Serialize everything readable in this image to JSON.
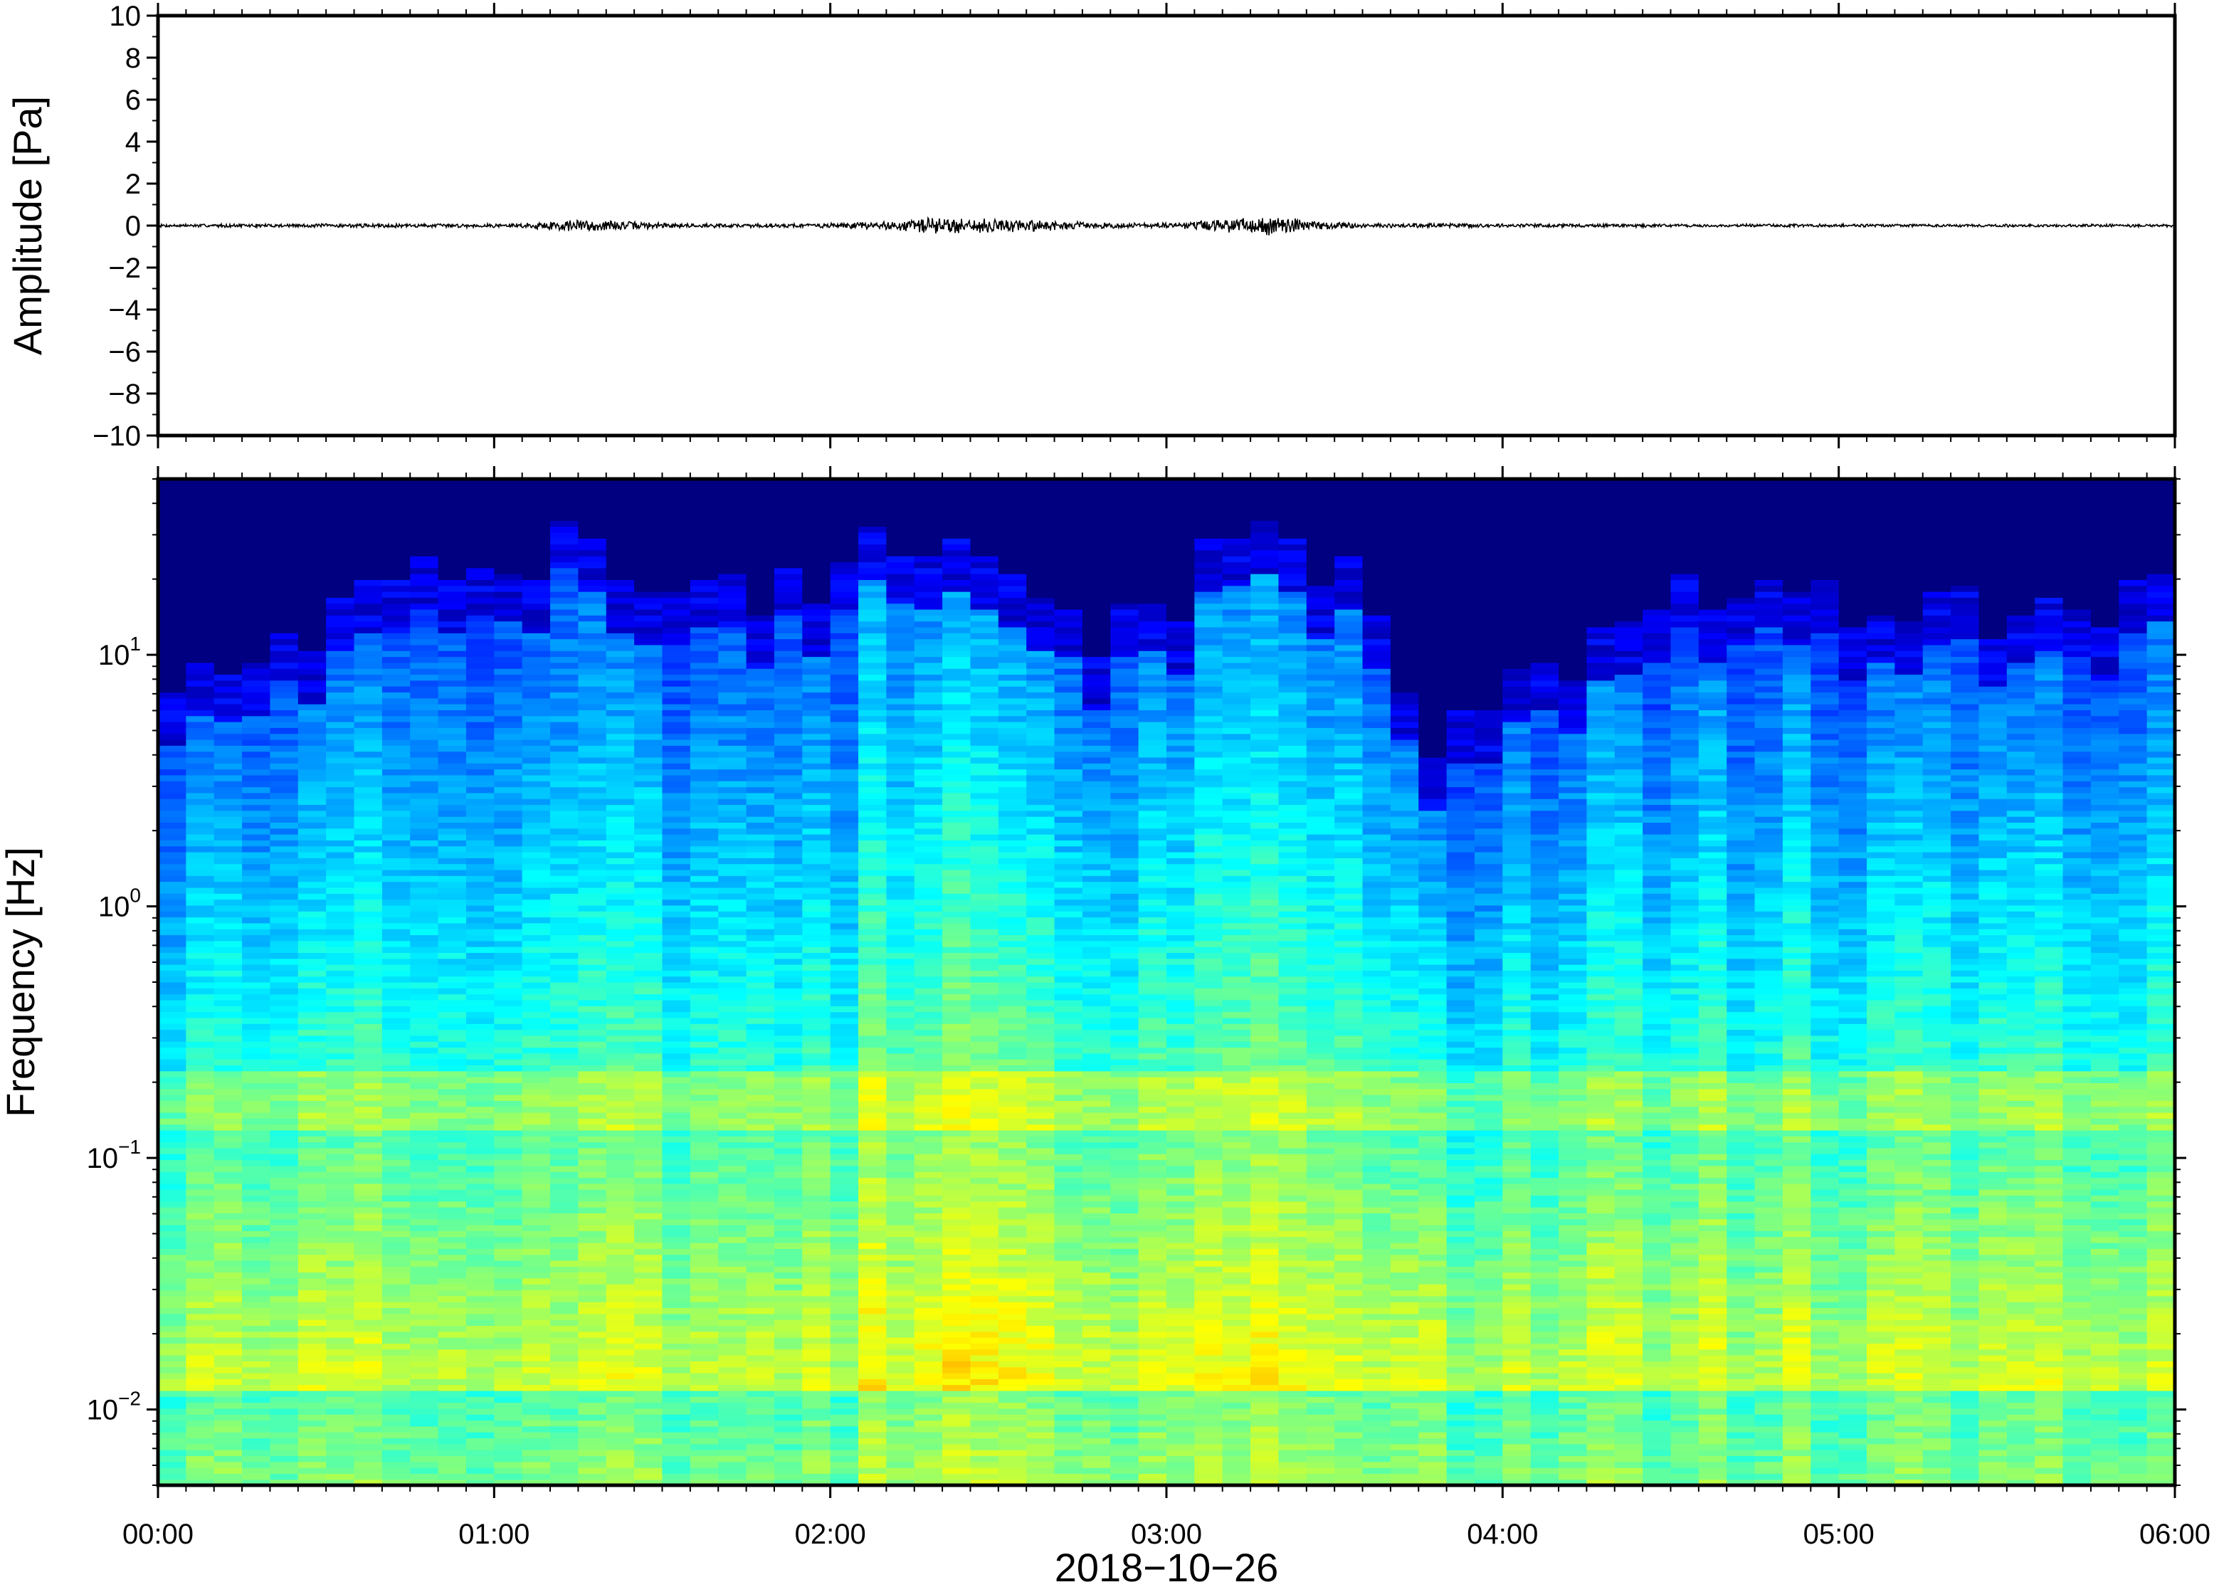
{
  "chart_data": [
    {
      "type": "line",
      "ylabel": "Amplitude [Pa]",
      "ylim": [
        -10,
        10
      ],
      "ytick_labels": [
        "10",
        "8",
        "6",
        "4",
        "2",
        "0",
        "−2",
        "−4",
        "−6",
        "−8",
        "−10"
      ],
      "yticks": [
        10,
        8,
        6,
        4,
        2,
        0,
        -2,
        -4,
        -6,
        -8,
        -10
      ],
      "xlim": [
        "00:00",
        "06:00"
      ],
      "grid": false,
      "series": [
        {
          "color": "#000000",
          "x_hours": [
            0.0,
            0.5,
            1.0,
            1.1,
            1.25,
            1.4,
            1.6,
            2.0,
            2.2,
            2.3,
            2.45,
            2.6,
            2.8,
            3.0,
            3.2,
            3.3,
            3.45,
            3.6,
            4.0,
            4.5,
            5.0,
            5.5,
            6.0
          ],
          "envelope_pa": [
            0.08,
            0.1,
            0.1,
            0.15,
            0.35,
            0.22,
            0.1,
            0.12,
            0.25,
            0.45,
            0.4,
            0.3,
            0.15,
            0.15,
            0.35,
            0.5,
            0.25,
            0.12,
            0.1,
            0.08,
            0.08,
            0.07,
            0.08
          ]
        }
      ]
    },
    {
      "type": "heatmap",
      "xlabel": "2018−10−26",
      "ylabel": "Frequency [Hz]",
      "yscale": "log",
      "ylim_hz": [
        0.005,
        50
      ],
      "yticks_hz": [
        0.01,
        0.1,
        1,
        10
      ],
      "ytick_labels": [
        {
          "base": "10",
          "exp": "−2"
        },
        {
          "base": "10",
          "exp": "−1"
        },
        {
          "base": "10",
          "exp": "0"
        },
        {
          "base": "10",
          "exp": "1"
        }
      ],
      "xtick_labels": [
        "00:00",
        "01:00",
        "02:00",
        "03:00",
        "04:00",
        "05:00",
        "06:00"
      ],
      "x_hours_range": [
        0,
        6
      ],
      "colormap": "jet",
      "time_columns_hours": [
        0.0,
        0.25,
        0.5,
        0.75,
        1.0,
        1.25,
        1.5,
        1.75,
        2.0,
        2.25,
        2.5,
        2.75,
        3.0,
        3.25,
        3.5,
        3.75,
        4.0,
        4.25,
        4.5,
        4.75,
        5.0,
        5.25,
        5.5,
        5.75,
        6.0
      ],
      "upper_cutoff_hz": [
        5,
        6,
        10,
        12,
        12,
        18,
        12,
        10,
        12,
        20,
        18,
        6,
        10,
        18,
        14,
        3,
        5,
        6,
        10,
        12,
        10,
        10,
        8,
        10,
        12
      ],
      "loud_window_hours": [
        [
          2.1,
          2.7
        ],
        [
          3.1,
          3.5
        ]
      ],
      "microseism_band_hz": [
        0.13,
        0.22
      ]
    }
  ]
}
